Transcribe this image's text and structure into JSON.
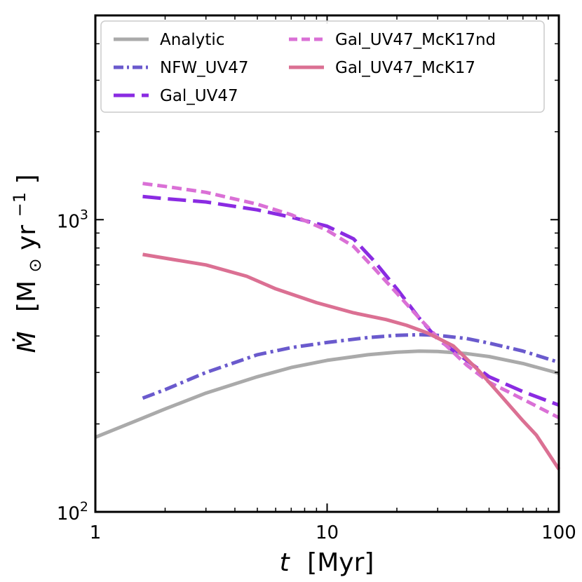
{
  "chart_data": {
    "type": "line",
    "xscale": "log",
    "yscale": "log",
    "xlim": [
      1,
      100
    ],
    "ylim": [
      100,
      5000
    ],
    "x_ticks": [
      {
        "value": 1,
        "label": "1"
      },
      {
        "value": 10,
        "label": "10"
      },
      {
        "value": 100,
        "label": "100"
      }
    ],
    "y_ticks": [
      {
        "value": 100,
        "base": "10",
        "exp": "2"
      },
      {
        "value": 1000,
        "base": "10",
        "exp": "3"
      }
    ],
    "xlabel": {
      "symbol": "t",
      "unit": "[Myr]"
    },
    "ylabel": {
      "symbol": "Ṁ",
      "unit_pre": "[M",
      "unit_sub": "⊙",
      "unit_mid": " yr",
      "unit_sup": "−1",
      "unit_post": "]"
    },
    "grid": false,
    "legend_position": "top",
    "series": [
      {
        "name": "Analytic",
        "color": "#aaaaaa",
        "dash": "solid",
        "x": [
          1,
          1.5,
          2,
          3,
          5,
          7,
          10,
          15,
          20,
          25,
          30,
          40,
          50,
          70,
          100
        ],
        "y": [
          180,
          205,
          225,
          255,
          290,
          312,
          330,
          345,
          352,
          355,
          354,
          348,
          340,
          322,
          298
        ]
      },
      {
        "name": "NFW_UV47",
        "color": "#6a5acd",
        "dash": "dashdot",
        "x": [
          1.6,
          2,
          3,
          5,
          7,
          10,
          15,
          20,
          25,
          30,
          40,
          50,
          70,
          100
        ],
        "y": [
          245,
          262,
          300,
          345,
          365,
          380,
          395,
          402,
          404,
          402,
          392,
          378,
          355,
          325
        ]
      },
      {
        "name": "Gal_UV47",
        "color": "#8a2be2",
        "dash": "longdash",
        "x": [
          1.6,
          2,
          3,
          5,
          7,
          10,
          13,
          16,
          20,
          25,
          30,
          40,
          50,
          70,
          100
        ],
        "y": [
          1200,
          1180,
          1150,
          1080,
          1020,
          950,
          860,
          720,
          580,
          460,
          390,
          330,
          290,
          258,
          232
        ]
      },
      {
        "name": "Gal_UV47_McK17nd",
        "color": "#da70d6",
        "dash": "dashed",
        "x": [
          1.6,
          2,
          3,
          5,
          7,
          10,
          13,
          16,
          20,
          25,
          30,
          40,
          50,
          70,
          100
        ],
        "y": [
          1330,
          1300,
          1240,
          1130,
          1040,
          920,
          810,
          680,
          560,
          460,
          395,
          318,
          278,
          243,
          210
        ]
      },
      {
        "name": "Gal_UV47_McK17",
        "color": "#db7093",
        "dash": "solid",
        "x": [
          1.6,
          3,
          4.5,
          6,
          9,
          13,
          18,
          22,
          27,
          35,
          45,
          55,
          70,
          80,
          100
        ],
        "y": [
          760,
          700,
          640,
          580,
          520,
          480,
          455,
          435,
          410,
          370,
          305,
          255,
          205,
          183,
          140
        ]
      }
    ]
  }
}
